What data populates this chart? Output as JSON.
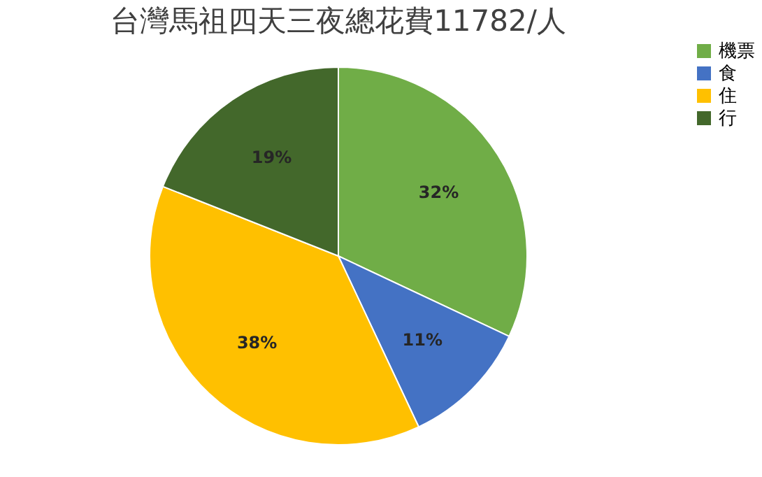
{
  "chart_data": {
    "type": "pie",
    "title": "台灣馬祖四天三夜總花費11782/人",
    "categories": [
      "機票",
      "食",
      "住",
      "行"
    ],
    "values": [
      32,
      11,
      38,
      19
    ],
    "colors": [
      "#70ad47",
      "#4472c4",
      "#ffc000",
      "#43682b"
    ],
    "value_labels": [
      "32%",
      "11%",
      "38%",
      "19%"
    ],
    "legend": "right"
  }
}
